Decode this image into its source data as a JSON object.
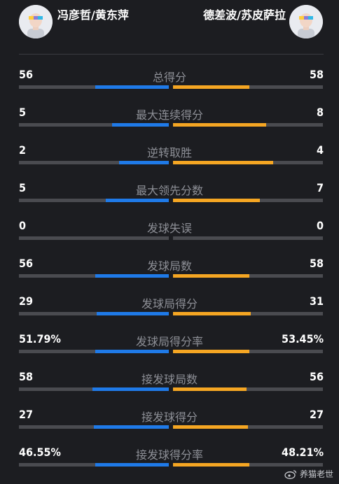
{
  "header": {
    "left_team": "冯彦哲/黄东萍",
    "right_team": "德差波/苏皮萨拉"
  },
  "colors": {
    "left_accent": "#1f7ae8",
    "right_accent": "#f5a623",
    "track": "#4a4b50",
    "background": "#1c1d21"
  },
  "stats": [
    {
      "label": "总得分",
      "left": "56",
      "right": "58",
      "left_share": 0.49,
      "right_share": 0.51
    },
    {
      "label": "最大连续得分",
      "left": "5",
      "right": "8",
      "left_share": 0.38,
      "right_share": 0.62
    },
    {
      "label": "逆转取胜",
      "left": "2",
      "right": "4",
      "left_share": 0.33,
      "right_share": 0.67
    },
    {
      "label": "最大领先分数",
      "left": "5",
      "right": "7",
      "left_share": 0.42,
      "right_share": 0.58
    },
    {
      "label": "发球失误",
      "left": "0",
      "right": "0",
      "left_share": 0,
      "right_share": 0
    },
    {
      "label": "发球局数",
      "left": "56",
      "right": "58",
      "left_share": 0.49,
      "right_share": 0.51
    },
    {
      "label": "发球局得分",
      "left": "29",
      "right": "31",
      "left_share": 0.48,
      "right_share": 0.52
    },
    {
      "label": "发球局得分率",
      "left": "51.79%",
      "right": "53.45%",
      "left_share": 0.49,
      "right_share": 0.51
    },
    {
      "label": "接发球局数",
      "left": "58",
      "right": "56",
      "left_share": 0.51,
      "right_share": 0.49
    },
    {
      "label": "接发球得分",
      "left": "27",
      "right": "27",
      "left_share": 0.5,
      "right_share": 0.5
    },
    {
      "label": "接发球得分率",
      "left": "46.55%",
      "right": "48.21%",
      "left_share": 0.49,
      "right_share": 0.51
    }
  ],
  "watermark": {
    "text": "养猫老世",
    "icon": "weibo-icon"
  }
}
